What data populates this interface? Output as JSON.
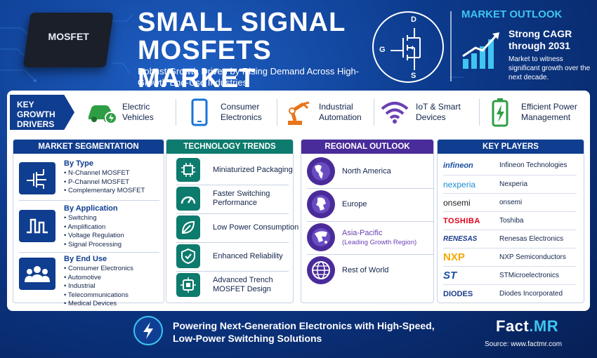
{
  "header": {
    "chip_label": "MOSFET",
    "title_line1": "SMALL SIGNAL",
    "title_line2": "MOSFETS MARKET",
    "subtitle": "Robust Growth Driven by Rising Demand Across High-Growth End-Use Industries",
    "symbol_labels": {
      "drain": "D",
      "gate": "G",
      "source": "S"
    }
  },
  "market_outlook": {
    "title": "MARKET OUTLOOK",
    "headline": "Strong CAGR through 2031",
    "text": "Market to witness significant growth over the next decade."
  },
  "key_growth_drivers": {
    "label": "KEY GROWTH DRIVERS",
    "items": [
      {
        "label": "Electric Vehicles",
        "icon": "electric-car-icon",
        "color": "#2e9e44"
      },
      {
        "label": "Consumer Electronics",
        "icon": "smartphone-icon",
        "color": "#1a73d9"
      },
      {
        "label": "Industrial Automation",
        "icon": "robot-arm-icon",
        "color": "#e8741a"
      },
      {
        "label": "IoT & Smart Devices",
        "icon": "wifi-icon",
        "color": "#6b3fb5"
      },
      {
        "label": "Efficient Power Management",
        "icon": "battery-icon",
        "color": "#2e9e44"
      }
    ]
  },
  "market_segmentation": {
    "title": "MARKET SEGMENTATION",
    "color": "#0f3d8f",
    "groups": [
      {
        "title": "By Type",
        "items": [
          "N-Channel MOSFET",
          "P-Channel MOSFET",
          "Complementary MOSFET"
        ]
      },
      {
        "title": "By Application",
        "items": [
          "Switching",
          "Amplification",
          "Voltage Regulation",
          "Signal Processing"
        ]
      },
      {
        "title": "By End Use",
        "items": [
          "Consumer Electronics",
          "Automotive",
          "Industrial",
          "Telecommunications",
          "Medical Devices"
        ]
      }
    ]
  },
  "technology_trends": {
    "title": "TECHNOLOGY TRENDS",
    "color": "#0d7b6d",
    "items": [
      {
        "label": "Miniaturized Packaging",
        "icon": "chip-icon"
      },
      {
        "label": "Faster Switching Performance",
        "icon": "speedometer-icon"
      },
      {
        "label": "Low Power Consumption",
        "icon": "leaf-icon"
      },
      {
        "label": "Enhanced Reliability",
        "icon": "shield-check-icon"
      },
      {
        "label": "Advanced Trench MOSFET Design",
        "icon": "mosfet-chip-icon"
      }
    ]
  },
  "regional_outlook": {
    "title": "REGIONAL OUTLOOK",
    "color": "#4a2b9a",
    "items": [
      {
        "label": "North America",
        "note": ""
      },
      {
        "label": "Europe",
        "note": ""
      },
      {
        "label": "Asia-Pacific",
        "note": "(Leading Growth Region)"
      },
      {
        "label": "Rest of World",
        "note": ""
      }
    ]
  },
  "key_players": {
    "title": "KEY PLAYERS",
    "color": "#0f3d8f",
    "items": [
      {
        "logo": "infineon",
        "name": "Infineon Technologies",
        "color": "#1a4fa0"
      },
      {
        "logo": "nexperia",
        "name": "Nexperia",
        "color": "#1d8fd1"
      },
      {
        "logo": "onsemi",
        "name": "onsemi",
        "color": "#222222"
      },
      {
        "logo": "TOSHIBA",
        "name": "Toshiba",
        "color": "#e0001b"
      },
      {
        "logo": "RENESAS",
        "name": "Renesas Electronics",
        "color": "#1a3a8a"
      },
      {
        "logo": "NXP",
        "name": "NXP Semiconductors",
        "color": "#f2a900"
      },
      {
        "logo": "ST",
        "name": "STMicroelectronics",
        "color": "#1a4fa0"
      },
      {
        "logo": "DIODES",
        "name": "Diodes Incorporated",
        "color": "#1a3a8a"
      }
    ]
  },
  "footer": {
    "tagline": "Powering Next-Generation Electronics with High-Speed, Low-Power Switching Solutions",
    "brand_main": "Fact",
    "brand_accent": ".MR",
    "source": "Source: www.factmr.com"
  }
}
